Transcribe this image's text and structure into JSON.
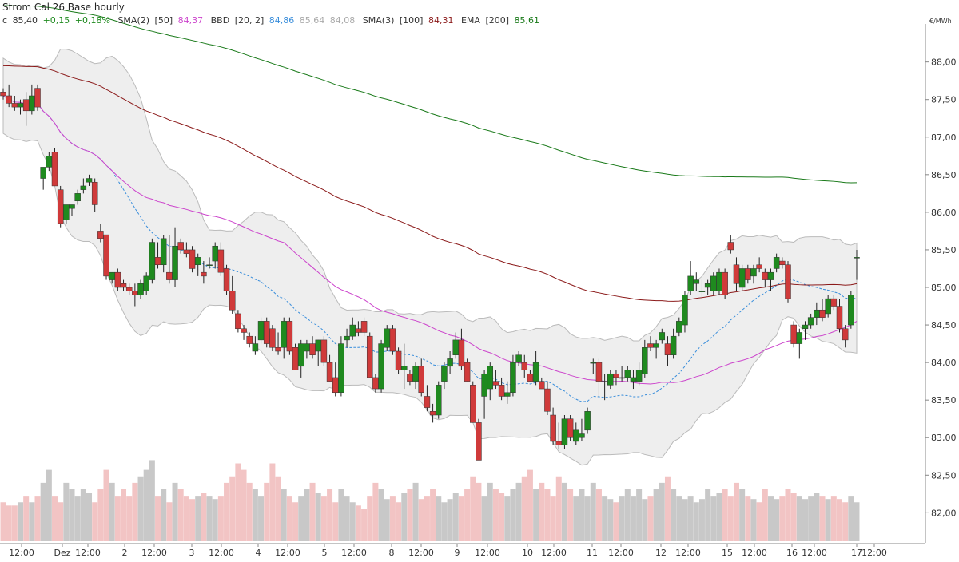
{
  "chart_data": {
    "type": "candlestick",
    "title": "Strom Cal 26 Base hourly",
    "unit": "€/MWh",
    "ylim": [
      81.6,
      88.4
    ],
    "y_ticks": [
      "82,00",
      "82,50",
      "83,00",
      "83,50",
      "84,00",
      "84,50",
      "85,00",
      "85,50",
      "86,00",
      "86,50",
      "87,00",
      "87,50",
      "88,00"
    ],
    "x_tick_labels": [
      "12:00",
      "Dez",
      "12:00",
      "2",
      "12:00",
      "3",
      "12:00",
      "4",
      "12:00",
      "5",
      "12:00",
      "8",
      "12:00",
      "9",
      "12:00",
      "10",
      "12:00",
      "11",
      "12:00",
      "12",
      "12:00",
      "15",
      "12:00",
      "16",
      "12:00",
      "17",
      "12:00"
    ],
    "legend": {
      "price": {
        "label": "c",
        "value": "85,40",
        "change": "+0,15",
        "change_pct": "+0,18%"
      },
      "sma2": {
        "name": "SMA(2)",
        "param": "[50]",
        "value": "84,37",
        "color": "#cc44cc"
      },
      "bbd": {
        "name": "BBD",
        "param": "[20, 2]",
        "mid": "84,86",
        "upper": "85,64",
        "lower": "84,08",
        "mid_color": "#3a8edb",
        "band_color": "#bbbbbb"
      },
      "sma3": {
        "name": "SMA(3)",
        "param": "[100]",
        "value": "84,31",
        "color": "#8b1a1a"
      },
      "ema": {
        "name": "EMA",
        "param": "[200]",
        "value": "85,61",
        "color": "#1a7a1a"
      }
    },
    "colors": {
      "up": "#1f8a1f",
      "down": "#d03a3a",
      "volume_up": "#c8c8c8",
      "volume_down": "#f2c4c4",
      "change": "#1f8a1f"
    },
    "grid": false,
    "candles": [
      [
        87.6,
        87.65,
        87.5,
        87.55
      ],
      [
        87.55,
        87.7,
        87.4,
        87.45
      ],
      [
        87.45,
        87.55,
        87.35,
        87.4
      ],
      [
        87.4,
        87.5,
        87.3,
        87.45
      ],
      [
        87.5,
        87.6,
        87.15,
        87.35
      ],
      [
        87.35,
        87.7,
        87.3,
        87.55
      ],
      [
        87.65,
        87.7,
        87.35,
        87.4
      ],
      [
        86.45,
        86.55,
        86.3,
        86.6
      ],
      [
        86.6,
        86.8,
        86.55,
        86.75
      ],
      [
        86.8,
        86.85,
        86.35,
        86.35
      ],
      [
        86.3,
        86.35,
        85.8,
        85.85
      ],
      [
        85.9,
        86.1,
        85.85,
        86.1
      ],
      [
        86.05,
        86.1,
        85.95,
        86.1
      ],
      [
        86.15,
        86.3,
        86.1,
        86.25
      ],
      [
        86.3,
        86.45,
        86.25,
        86.35
      ],
      [
        86.4,
        86.5,
        86.35,
        86.45
      ],
      [
        86.4,
        86.45,
        86.0,
        86.1
      ],
      [
        85.75,
        85.85,
        85.6,
        85.65
      ],
      [
        85.7,
        85.7,
        85.1,
        85.15
      ],
      [
        85.1,
        85.2,
        85.05,
        85.2
      ],
      [
        85.2,
        85.25,
        84.95,
        85.0
      ],
      [
        85.05,
        85.1,
        84.95,
        85.0
      ],
      [
        85.0,
        85.05,
        84.9,
        84.95
      ],
      [
        84.95,
        85.05,
        84.75,
        84.9
      ],
      [
        84.9,
        85.1,
        84.85,
        85.05
      ],
      [
        84.95,
        85.2,
        84.9,
        85.15
      ],
      [
        85.1,
        85.65,
        85.05,
        85.6
      ],
      [
        85.4,
        85.6,
        85.25,
        85.3
      ],
      [
        85.3,
        85.7,
        85.2,
        85.65
      ],
      [
        85.2,
        85.7,
        85.05,
        85.1
      ],
      [
        85.1,
        85.8,
        85.0,
        85.55
      ],
      [
        85.6,
        85.65,
        85.45,
        85.5
      ],
      [
        85.5,
        85.6,
        85.4,
        85.45
      ],
      [
        85.5,
        85.55,
        85.2,
        85.25
      ],
      [
        85.3,
        85.45,
        85.15,
        85.4
      ],
      [
        85.2,
        85.35,
        85.05,
        85.15
      ],
      [
        85.3,
        85.4,
        85.25,
        85.3
      ],
      [
        85.35,
        85.6,
        85.25,
        85.55
      ],
      [
        85.5,
        85.6,
        85.15,
        85.2
      ],
      [
        85.25,
        85.3,
        84.9,
        84.95
      ],
      [
        84.95,
        85.15,
        84.65,
        84.7
      ],
      [
        84.65,
        84.7,
        84.4,
        84.45
      ],
      [
        84.45,
        84.5,
        84.3,
        84.4
      ],
      [
        84.35,
        84.4,
        84.2,
        84.25
      ],
      [
        84.15,
        84.35,
        84.1,
        84.25
      ],
      [
        84.3,
        84.6,
        84.25,
        84.55
      ],
      [
        84.55,
        84.6,
        84.2,
        84.25
      ],
      [
        84.45,
        84.5,
        84.15,
        84.2
      ],
      [
        84.2,
        84.4,
        84.1,
        84.15
      ],
      [
        84.2,
        84.6,
        84.05,
        84.55
      ],
      [
        84.55,
        84.6,
        84.1,
        84.15
      ],
      [
        84.2,
        84.25,
        83.9,
        83.9
      ],
      [
        83.95,
        84.3,
        83.8,
        84.25
      ],
      [
        84.15,
        84.3,
        84.05,
        84.25
      ],
      [
        84.25,
        84.35,
        84.05,
        84.1
      ],
      [
        84.15,
        84.3,
        83.95,
        84.3
      ],
      [
        84.3,
        84.35,
        83.95,
        84.0
      ],
      [
        84.0,
        84.1,
        83.75,
        83.75
      ],
      [
        83.8,
        84.0,
        83.55,
        83.6
      ],
      [
        83.6,
        84.35,
        83.55,
        84.25
      ],
      [
        84.3,
        84.45,
        84.2,
        84.35
      ],
      [
        84.35,
        84.6,
        84.3,
        84.5
      ],
      [
        84.45,
        84.55,
        84.35,
        84.4
      ],
      [
        84.55,
        84.6,
        84.35,
        84.4
      ],
      [
        84.35,
        84.4,
        83.8,
        83.8
      ],
      [
        83.8,
        83.85,
        83.6,
        83.65
      ],
      [
        83.65,
        84.3,
        83.6,
        84.25
      ],
      [
        84.2,
        84.5,
        84.15,
        84.45
      ],
      [
        84.45,
        84.5,
        84.1,
        84.15
      ],
      [
        84.15,
        84.2,
        83.85,
        83.9
      ],
      [
        83.9,
        84.25,
        83.65,
        83.95
      ],
      [
        83.85,
        83.9,
        83.7,
        83.75
      ],
      [
        83.75,
        84.0,
        83.65,
        83.95
      ],
      [
        83.95,
        84.05,
        83.55,
        83.6
      ],
      [
        83.55,
        83.7,
        83.35,
        83.4
      ],
      [
        83.35,
        83.45,
        83.2,
        83.3
      ],
      [
        83.3,
        83.75,
        83.25,
        83.7
      ],
      [
        83.75,
        84.0,
        83.65,
        83.95
      ],
      [
        83.95,
        84.15,
        83.85,
        84.05
      ],
      [
        84.1,
        84.4,
        84.05,
        84.3
      ],
      [
        84.3,
        84.45,
        83.9,
        83.95
      ],
      [
        84.0,
        84.05,
        83.75,
        83.75
      ],
      [
        83.7,
        83.75,
        83.2,
        83.2
      ],
      [
        83.2,
        83.25,
        82.7,
        82.7
      ],
      [
        83.55,
        83.9,
        83.25,
        83.85
      ],
      [
        83.65,
        84.0,
        83.5,
        83.95
      ],
      [
        83.75,
        83.9,
        83.65,
        83.7
      ],
      [
        83.7,
        83.8,
        83.5,
        83.55
      ],
      [
        83.55,
        83.75,
        83.45,
        83.6
      ],
      [
        83.6,
        84.1,
        83.55,
        84.0
      ],
      [
        84.0,
        84.15,
        83.95,
        84.1
      ],
      [
        84.0,
        84.1,
        83.8,
        83.9
      ],
      [
        83.85,
        83.9,
        83.75,
        83.75
      ],
      [
        83.75,
        84.15,
        83.7,
        84.0
      ],
      [
        83.75,
        83.8,
        83.65,
        83.65
      ],
      [
        83.65,
        83.75,
        83.3,
        83.35
      ],
      [
        83.3,
        83.4,
        82.9,
        82.95
      ],
      [
        82.95,
        83.2,
        82.85,
        82.9
      ],
      [
        82.9,
        83.3,
        82.85,
        83.25
      ],
      [
        83.25,
        83.3,
        82.95,
        83.0
      ],
      [
        82.95,
        83.2,
        82.9,
        83.1
      ],
      [
        83.0,
        83.25,
        82.95,
        83.05
      ],
      [
        83.1,
        83.4,
        83.05,
        83.35
      ],
      [
        84.0,
        84.05,
        83.85,
        84.0
      ],
      [
        84.0,
        84.05,
        83.55,
        83.75
      ],
      [
        83.75,
        83.85,
        83.5,
        83.75
      ],
      [
        83.7,
        83.9,
        83.65,
        83.85
      ],
      [
        83.85,
        83.9,
        83.7,
        83.8
      ],
      [
        83.8,
        83.95,
        83.75,
        83.8
      ],
      [
        83.8,
        83.95,
        83.75,
        83.9
      ],
      [
        83.75,
        83.9,
        83.65,
        83.8
      ],
      [
        83.75,
        84.0,
        83.7,
        83.9
      ],
      [
        83.85,
        84.3,
        83.8,
        84.2
      ],
      [
        84.25,
        84.35,
        84.15,
        84.2
      ],
      [
        84.2,
        84.3,
        84.05,
        84.25
      ],
      [
        84.3,
        84.45,
        84.25,
        84.4
      ],
      [
        84.25,
        84.35,
        83.95,
        84.1
      ],
      [
        84.1,
        84.45,
        84.05,
        84.35
      ],
      [
        84.4,
        84.6,
        84.35,
        84.55
      ],
      [
        84.5,
        84.95,
        84.4,
        84.9
      ],
      [
        84.95,
        85.35,
        84.9,
        85.15
      ],
      [
        85.05,
        85.2,
        84.95,
        85.1
      ],
      [
        84.95,
        85.1,
        84.85,
        84.95
      ],
      [
        85.0,
        85.1,
        84.9,
        85.05
      ],
      [
        84.95,
        85.2,
        84.9,
        85.15
      ],
      [
        84.95,
        85.25,
        84.9,
        85.2
      ],
      [
        85.2,
        85.25,
        84.85,
        84.9
      ],
      [
        85.6,
        85.7,
        85.45,
        85.5
      ],
      [
        85.3,
        85.4,
        84.95,
        85.05
      ],
      [
        85.0,
        85.3,
        84.95,
        85.25
      ],
      [
        85.25,
        85.3,
        85.05,
        85.1
      ],
      [
        85.15,
        85.3,
        85.05,
        85.25
      ],
      [
        85.3,
        85.4,
        85.2,
        85.25
      ],
      [
        85.2,
        85.25,
        85.0,
        85.1
      ],
      [
        85.1,
        85.25,
        84.95,
        85.2
      ],
      [
        85.25,
        85.45,
        85.2,
        85.4
      ],
      [
        85.35,
        85.4,
        85.25,
        85.3
      ],
      [
        85.3,
        85.35,
        84.8,
        84.85
      ],
      [
        84.5,
        84.55,
        84.2,
        84.25
      ],
      [
        84.25,
        84.45,
        84.05,
        84.4
      ],
      [
        84.45,
        84.55,
        84.3,
        84.5
      ],
      [
        84.5,
        84.65,
        84.45,
        84.6
      ],
      [
        84.6,
        84.8,
        84.5,
        84.7
      ],
      [
        84.7,
        84.85,
        84.55,
        84.6
      ],
      [
        84.65,
        84.9,
        84.6,
        84.85
      ],
      [
        84.85,
        84.9,
        84.7,
        84.75
      ],
      [
        84.75,
        84.85,
        84.4,
        84.45
      ],
      [
        84.45,
        84.5,
        84.2,
        84.3
      ],
      [
        84.5,
        84.95,
        84.45,
        84.9
      ],
      [
        85.4,
        85.5,
        85.1,
        85.4
      ]
    ],
    "volume": [
      12,
      11,
      11,
      12,
      14,
      12,
      14,
      18,
      22,
      14,
      12,
      18,
      16,
      14,
      16,
      15,
      12,
      16,
      22,
      18,
      14,
      16,
      14,
      18,
      20,
      22,
      25,
      14,
      16,
      12,
      18,
      16,
      14,
      13,
      14,
      15,
      14,
      13,
      14,
      18,
      20,
      24,
      22,
      18,
      16,
      14,
      18,
      24,
      20,
      16,
      14,
      12,
      14,
      16,
      18,
      15,
      14,
      16,
      12,
      16,
      14,
      12,
      11,
      10,
      14,
      18,
      16,
      13,
      14,
      12,
      15,
      16,
      18,
      13,
      14,
      16,
      14,
      12,
      13,
      15,
      14,
      16,
      20,
      18,
      14,
      18,
      16,
      15,
      14,
      16,
      18,
      20,
      22,
      16,
      18,
      16,
      14,
      20,
      18,
      16,
      14,
      16,
      14,
      18,
      16,
      14,
      13,
      12,
      14,
      16,
      14,
      16,
      13,
      14,
      16,
      18,
      20,
      16,
      14,
      13,
      14,
      12,
      13,
      16,
      14,
      15,
      16,
      14,
      18,
      16,
      14,
      13,
      12,
      16,
      14,
      13,
      14,
      16,
      15,
      14,
      13,
      14,
      15,
      14,
      13,
      14,
      13,
      12,
      14,
      12
    ]
  }
}
